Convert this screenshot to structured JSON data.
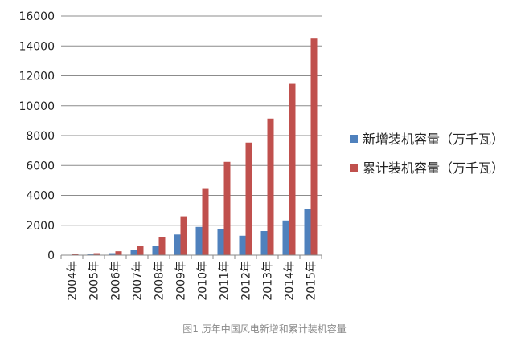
{
  "chart_data": {
    "type": "bar",
    "title": "",
    "xlabel": "",
    "ylabel": "",
    "ylim": [
      0,
      16000
    ],
    "yticks": [
      0,
      2000,
      4000,
      6000,
      8000,
      10000,
      12000,
      14000,
      16000
    ],
    "grid": true,
    "legend_position": "right",
    "categories": [
      "2004年",
      "2005年",
      "2006年",
      "2007年",
      "2008年",
      "2009年",
      "2010年",
      "2011年",
      "2012年",
      "2013年",
      "2014年",
      "2015年"
    ],
    "series": [
      {
        "name": "新增装机容量（万千瓦）",
        "color": "#4f81bd",
        "values": [
          20,
          50,
          130,
          330,
          620,
          1380,
          1890,
          1760,
          1300,
          1610,
          2320,
          3080
        ]
      },
      {
        "name": "累计装机容量（万千瓦）",
        "color": "#c0504d",
        "values": [
          80,
          130,
          260,
          590,
          1220,
          2600,
          4480,
          6240,
          7530,
          9140,
          11460,
          14540
        ]
      }
    ]
  },
  "caption": "图1 历年中国风电新增和累计装机容量"
}
